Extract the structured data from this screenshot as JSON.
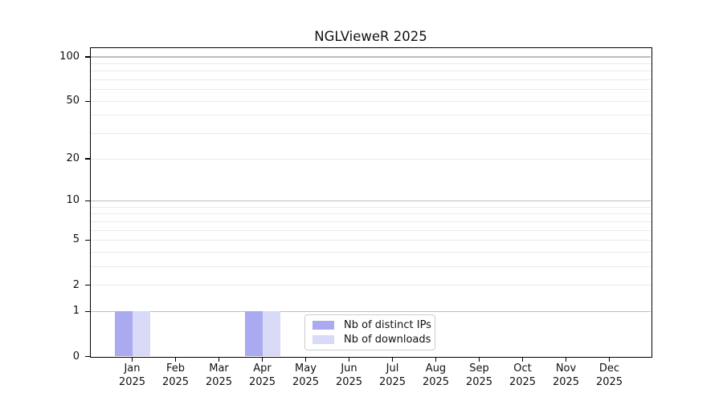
{
  "chart_data": {
    "type": "bar",
    "title": "NGLVieweR 2025",
    "categories": [
      "Jan",
      "Feb",
      "Mar",
      "Apr",
      "May",
      "Jun",
      "Jul",
      "Aug",
      "Sep",
      "Oct",
      "Nov",
      "Dec"
    ],
    "category_sublabel": "2025",
    "series": [
      {
        "name": "Nb of distinct IPs",
        "color": "#aaaaf0",
        "values": [
          1,
          0,
          0,
          1,
          0,
          0,
          0,
          0,
          0,
          0,
          0,
          0
        ]
      },
      {
        "name": "Nb of downloads",
        "color": "#d9d9f8",
        "values": [
          1,
          0,
          0,
          1,
          0,
          0,
          0,
          0,
          0,
          0,
          0,
          0
        ]
      }
    ],
    "xlabel": "",
    "ylabel": "",
    "y_scale": "log1p",
    "ylim": [
      0,
      114
    ],
    "y_tick_labels": [
      0,
      1,
      2,
      5,
      10,
      20,
      50,
      100
    ],
    "y_major_gridlines": [
      1,
      10,
      100
    ],
    "y_minor_gridlines": [
      2,
      3,
      4,
      5,
      6,
      7,
      8,
      9,
      20,
      30,
      40,
      50,
      60,
      70,
      80,
      90
    ],
    "grid": true,
    "legend_position": "bottom-center",
    "colors": {
      "major_grid": "#bdbdbd",
      "minor_grid": "#eaeaea",
      "axis": "#000000",
      "text": "#111111"
    }
  }
}
